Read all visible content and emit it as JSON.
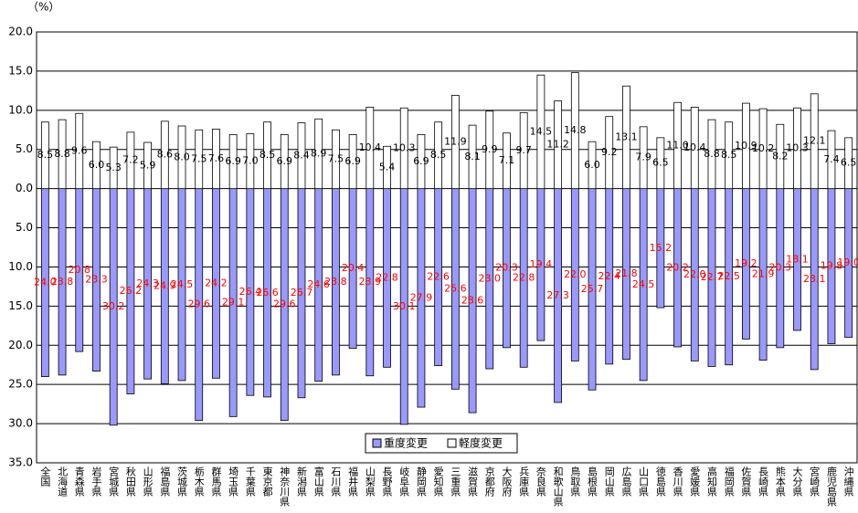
{
  "chart_data": {
    "type": "bar",
    "unit_label": "（%）",
    "categories": [
      "全国",
      "北海道",
      "青森県",
      "岩手県",
      "宮城県",
      "秋田県",
      "山形県",
      "福島県",
      "茨城県",
      "栃木県",
      "群馬県",
      "埼玉県",
      "千葉県",
      "東京都",
      "神奈川県",
      "新潟県",
      "富山県",
      "石川県",
      "福井県",
      "山梨県",
      "長野県",
      "岐阜県",
      "静岡県",
      "愛知県",
      "三重県",
      "滋賀県",
      "京都府",
      "大阪府",
      "兵庫県",
      "奈良県",
      "和歌山県",
      "鳥取県",
      "島根県",
      "岡山県",
      "広島県",
      "山口県",
      "徳島県",
      "香川県",
      "愛媛県",
      "高知県",
      "福岡県",
      "佐賀県",
      "長崎県",
      "熊本県",
      "大分県",
      "宮崎県",
      "鹿児島県",
      "沖縄県"
    ],
    "series": [
      {
        "name": "重度変更",
        "color": "#9999ff",
        "label_color": "#ff0000",
        "values": [
          -24.0,
          -23.8,
          -20.8,
          -23.3,
          -30.2,
          -26.2,
          -24.3,
          -24.9,
          -24.5,
          -29.6,
          -24.2,
          -29.1,
          -26.4,
          -26.6,
          -29.6,
          -26.7,
          -24.6,
          -23.8,
          -20.4,
          -23.9,
          -22.8,
          -30.1,
          -27.9,
          -22.6,
          -25.6,
          -28.6,
          -23.0,
          -20.3,
          -22.8,
          -19.4,
          -27.3,
          -22.0,
          -25.7,
          -22.4,
          -21.8,
          -24.5,
          -15.2,
          -20.2,
          -22.0,
          -22.7,
          -22.5,
          -19.2,
          -21.9,
          -20.3,
          -18.1,
          -23.1,
          -19.8,
          -19.0
        ],
        "value_labels": [
          "24.0",
          "23.8",
          "20.8",
          "23.3",
          "30.2",
          "26.2",
          "24.3",
          "24.9",
          "24.5",
          "29.6",
          "24.2",
          "29.1",
          "26.4",
          "26.6",
          "29.6",
          "26.7",
          "24.6",
          "23.8",
          "20.4",
          "23.9",
          "22.8",
          "30.1",
          "27.9",
          "22.6",
          "25.6",
          "28.6",
          "23.0",
          "20.3",
          "22.8",
          "19.4",
          "27.3",
          "22.0",
          "25.7",
          "22.4",
          "21.8",
          "24.5",
          "15.2",
          "20.2",
          "22.0",
          "22.7",
          "22.5",
          "19.2",
          "21.9",
          "20.3",
          "18.1",
          "23.1",
          "19.8",
          "19.0"
        ]
      },
      {
        "name": "軽度変更",
        "color": "#ffffff",
        "label_color": "#000000",
        "values": [
          8.5,
          8.8,
          9.6,
          6.0,
          5.3,
          7.2,
          5.9,
          8.6,
          8.0,
          7.5,
          7.6,
          6.9,
          7.0,
          8.5,
          6.9,
          8.4,
          8.9,
          7.5,
          6.9,
          10.4,
          5.4,
          10.3,
          6.9,
          8.5,
          11.9,
          8.1,
          9.9,
          7.1,
          9.7,
          14.5,
          11.2,
          14.8,
          6.0,
          9.2,
          13.1,
          7.9,
          6.5,
          11.0,
          10.4,
          8.8,
          8.5,
          10.9,
          10.2,
          8.2,
          10.3,
          12.1,
          7.4,
          6.5
        ],
        "value_labels": [
          "8.5",
          "8.8",
          "9.6",
          "6.0",
          "5.3",
          "7.2",
          "5.9",
          "8.6",
          "8.0",
          "7.5",
          "7.6",
          "6.9",
          "7.0",
          "8.5",
          "6.9",
          "8.4",
          "8.9",
          "7.5",
          "6.9",
          "10.4",
          "5.4",
          "10.3",
          "6.9",
          "8.5",
          "11.9",
          "8.1",
          "9.9",
          "7.1",
          "9.7",
          "14.5",
          "11.2",
          "14.8",
          "6.0",
          "9.2",
          "13.1",
          "7.9",
          "6.5",
          "11.0",
          "10.4",
          "8.8",
          "8.5",
          "10.9",
          "10.2",
          "8.2",
          "10.3",
          "12.1",
          "7.4",
          "6.5"
        ]
      }
    ],
    "ylim": [
      -35,
      20
    ],
    "yticks": [
      {
        "value": 20,
        "label": "20.0"
      },
      {
        "value": 15,
        "label": "15.0"
      },
      {
        "value": 10,
        "label": "10.0"
      },
      {
        "value": 5,
        "label": "5.0"
      },
      {
        "value": 0,
        "label": "0.0"
      },
      {
        "value": -5,
        "label": "5.0"
      },
      {
        "value": -10,
        "label": "10.0"
      },
      {
        "value": -15,
        "label": "15.0"
      },
      {
        "value": -20,
        "label": "20.0"
      },
      {
        "value": -25,
        "label": "25.0"
      },
      {
        "value": -30,
        "label": "30.0"
      },
      {
        "value": -35,
        "label": "35.0"
      }
    ],
    "grid": true,
    "legend": "bottom"
  }
}
